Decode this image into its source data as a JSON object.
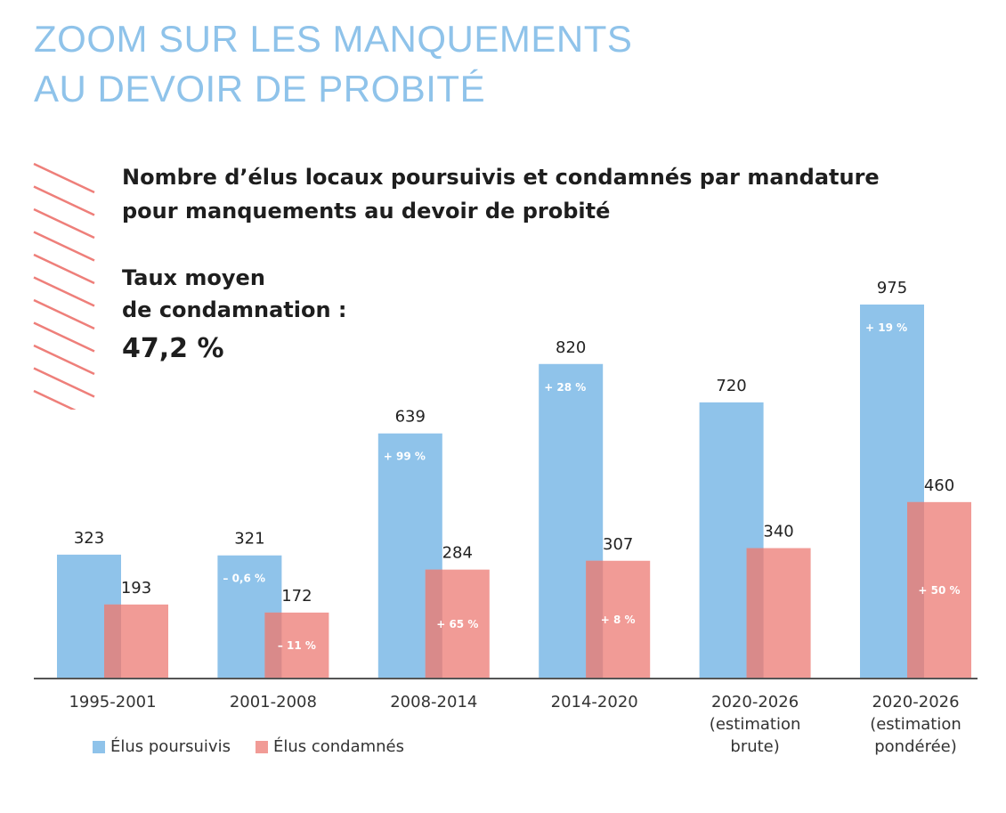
{
  "heading": {
    "line1": "ZOOM SUR LES MANQUEMENTS",
    "line2": "AU DEVOIR DE PROBITÉ"
  },
  "colors": {
    "heading": "#8fc3ea",
    "poursuivis": "#8fc3ea",
    "condamnes": "#f19b96",
    "overlap": "#d98a8a",
    "hatch": "#ee7f7a"
  },
  "rate": {
    "label_line1": "Taux moyen",
    "label_line2": "de condamnation :",
    "value": "47,2 %"
  },
  "chart_data": {
    "type": "bar",
    "title_line1": "Nombre d’élus locaux poursuivis et condamnés par mandature",
    "title_line2": "pour manquements au devoir de probité",
    "categories": [
      [
        "1995-2001"
      ],
      [
        "2001-2008"
      ],
      [
        "2008-2014"
      ],
      [
        "2014-2020"
      ],
      [
        "2020-2026",
        "(estimation",
        "brute)"
      ],
      [
        "2020-2026",
        "(estimation",
        "pondérée)"
      ]
    ],
    "series": [
      {
        "name": "Élus poursuivis",
        "values": [
          323,
          321,
          639,
          820,
          720,
          975
        ],
        "value_labels": [
          "323",
          "321",
          "639",
          "820",
          "720",
          "975"
        ],
        "change_labels": [
          "",
          "– 0,6 %",
          "+ 99 %",
          "+ 28 %",
          "",
          "+ 19 %"
        ]
      },
      {
        "name": "Élus condamnés",
        "values": [
          193,
          172,
          284,
          307,
          340,
          460
        ],
        "value_labels": [
          "193",
          "172",
          "284",
          "307",
          "340",
          "460"
        ],
        "change_labels": [
          "",
          "– 11 %",
          "+ 65 %",
          "+ 8 %",
          "",
          "+ 50 %"
        ]
      }
    ],
    "ylim": [
      0,
      1000
    ],
    "grid": false,
    "legend_position": "bottom-left"
  }
}
